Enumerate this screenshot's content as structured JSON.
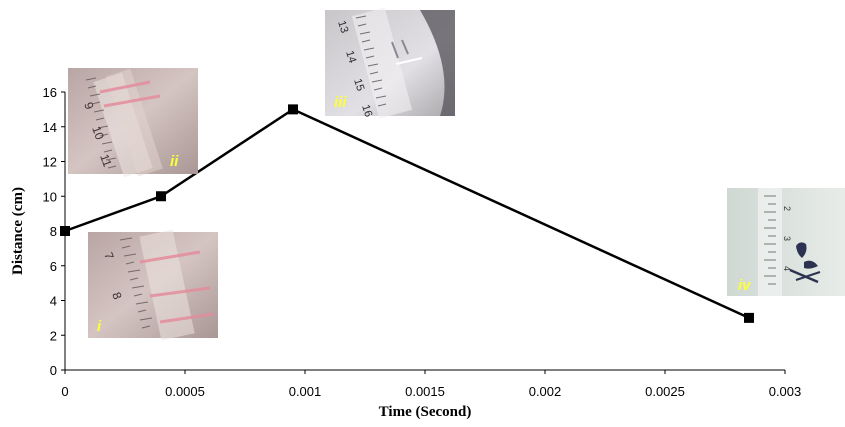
{
  "chart_data": {
    "type": "line",
    "x": [
      0,
      0.0004,
      0.00095,
      0.00285
    ],
    "values": [
      8,
      10,
      15,
      3
    ],
    "xlabel": "Time (Second)",
    "ylabel": "Distance (cm)",
    "xlim": [
      0,
      0.003
    ],
    "ylim": [
      0,
      16
    ],
    "x_ticks": [
      "0",
      "0.0005",
      "0.001",
      "0.0015",
      "0.002",
      "0.0025",
      "0.003"
    ],
    "y_ticks": [
      "0",
      "2",
      "4",
      "6",
      "8",
      "10",
      "12",
      "14",
      "16"
    ],
    "marker": "square",
    "line_color": "#000000",
    "grid": false
  },
  "photos": [
    {
      "label": "i",
      "ruler_numbers": [
        "7",
        "8"
      ]
    },
    {
      "label": "ii",
      "ruler_numbers": [
        "9",
        "10",
        "11"
      ]
    },
    {
      "label": "iii",
      "ruler_numbers": [
        "13",
        "14",
        "15",
        "16"
      ]
    },
    {
      "label": "iv",
      "ruler_numbers": [
        "2",
        "3",
        "4"
      ]
    }
  ]
}
